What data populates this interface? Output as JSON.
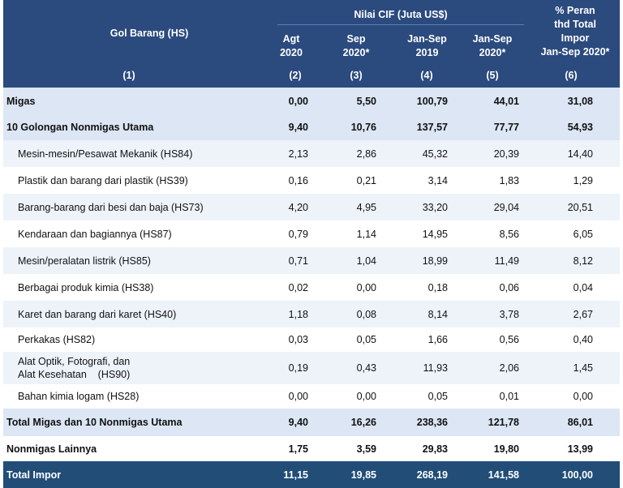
{
  "header": {
    "gol_barang": "Gol Barang (HS)",
    "nilai_cif": "Nilai CIF (Juta US$)",
    "col_agt": [
      "Agt",
      "2020"
    ],
    "col_sep": [
      "Sep",
      "2020*"
    ],
    "col_jansep2019": [
      "Jan-Sep",
      "2019"
    ],
    "col_jansep2020": [
      "Jan-Sep",
      "2020*"
    ],
    "col_peran": [
      "% Peran",
      "thd Total",
      "Impor",
      "Jan-Sep 2020*"
    ],
    "numbers": [
      "(1)",
      "(2)",
      "(3)",
      "(4)",
      "(5)",
      "(6)"
    ]
  },
  "rows": [
    {
      "label": "Migas",
      "values": [
        "0,00",
        "5,50",
        "100,79",
        "44,01",
        "31,08"
      ]
    },
    {
      "label": "10 Golongan Nonmigas Utama",
      "values": [
        "9,40",
        "10,76",
        "137,57",
        "77,77",
        "54,93"
      ]
    },
    {
      "label": "Mesin-mesin/Pesawat Mekanik (HS84)",
      "values": [
        "2,13",
        "2,86",
        "45,32",
        "20,39",
        "14,40"
      ]
    },
    {
      "label": "Plastik dan barang dari plastik (HS39)",
      "values": [
        "0,16",
        "0,21",
        "3,14",
        "1,83",
        "1,29"
      ]
    },
    {
      "label": "Barang-barang dari besi dan baja (HS73)",
      "values": [
        "4,20",
        "4,95",
        "33,20",
        "29,04",
        "20,51"
      ]
    },
    {
      "label": "Kendaraan dan bagiannya (HS87)",
      "values": [
        "0,79",
        "1,14",
        "14,95",
        "8,56",
        "6,05"
      ]
    },
    {
      "label": "Mesin/peralatan listrik (HS85)",
      "values": [
        "0,71",
        "1,04",
        "18,99",
        "11,49",
        "8,12"
      ]
    },
    {
      "label": "Berbagai produk kimia (HS38)",
      "values": [
        "0,02",
        "0,00",
        "0,18",
        "0,06",
        "0,04"
      ]
    },
    {
      "label": "Karet dan barang dari karet (HS40)",
      "values": [
        "1,18",
        "0,08",
        "8,14",
        "3,78",
        "2,67"
      ]
    },
    {
      "label": "Perkakas (HS82)",
      "values": [
        "0,03",
        "0,05",
        "1,66",
        "0,56",
        "0,40"
      ]
    },
    {
      "label": "Alat Optik, Fotografi, dan\nAlat Kesehatan    (HS90)",
      "values": [
        "0,19",
        "0,43",
        "11,93",
        "2,06",
        "1,45"
      ]
    },
    {
      "label": "Bahan kimia logam (HS28)",
      "values": [
        "0,00",
        "0,00",
        "0,05",
        "0,01",
        "0,00"
      ]
    },
    {
      "label": "Total Migas dan 10 Nonmigas Utama",
      "values": [
        "9,40",
        "16,26",
        "238,36",
        "121,78",
        "86,01"
      ]
    },
    {
      "label": "Nonmigas Lainnya",
      "values": [
        "1,75",
        "3,59",
        "29,83",
        "19,80",
        "13,99"
      ]
    },
    {
      "label": "Total Impor",
      "values": [
        "11,15",
        "19,85",
        "268,19",
        "141,58",
        "100,00"
      ]
    }
  ],
  "colors": {
    "header_bg": "#2b4a7e",
    "row_highlight": "#dce6f4",
    "row_light": "#eef3fa",
    "row_white": "#ffffff",
    "total_bg": "#214d77"
  }
}
